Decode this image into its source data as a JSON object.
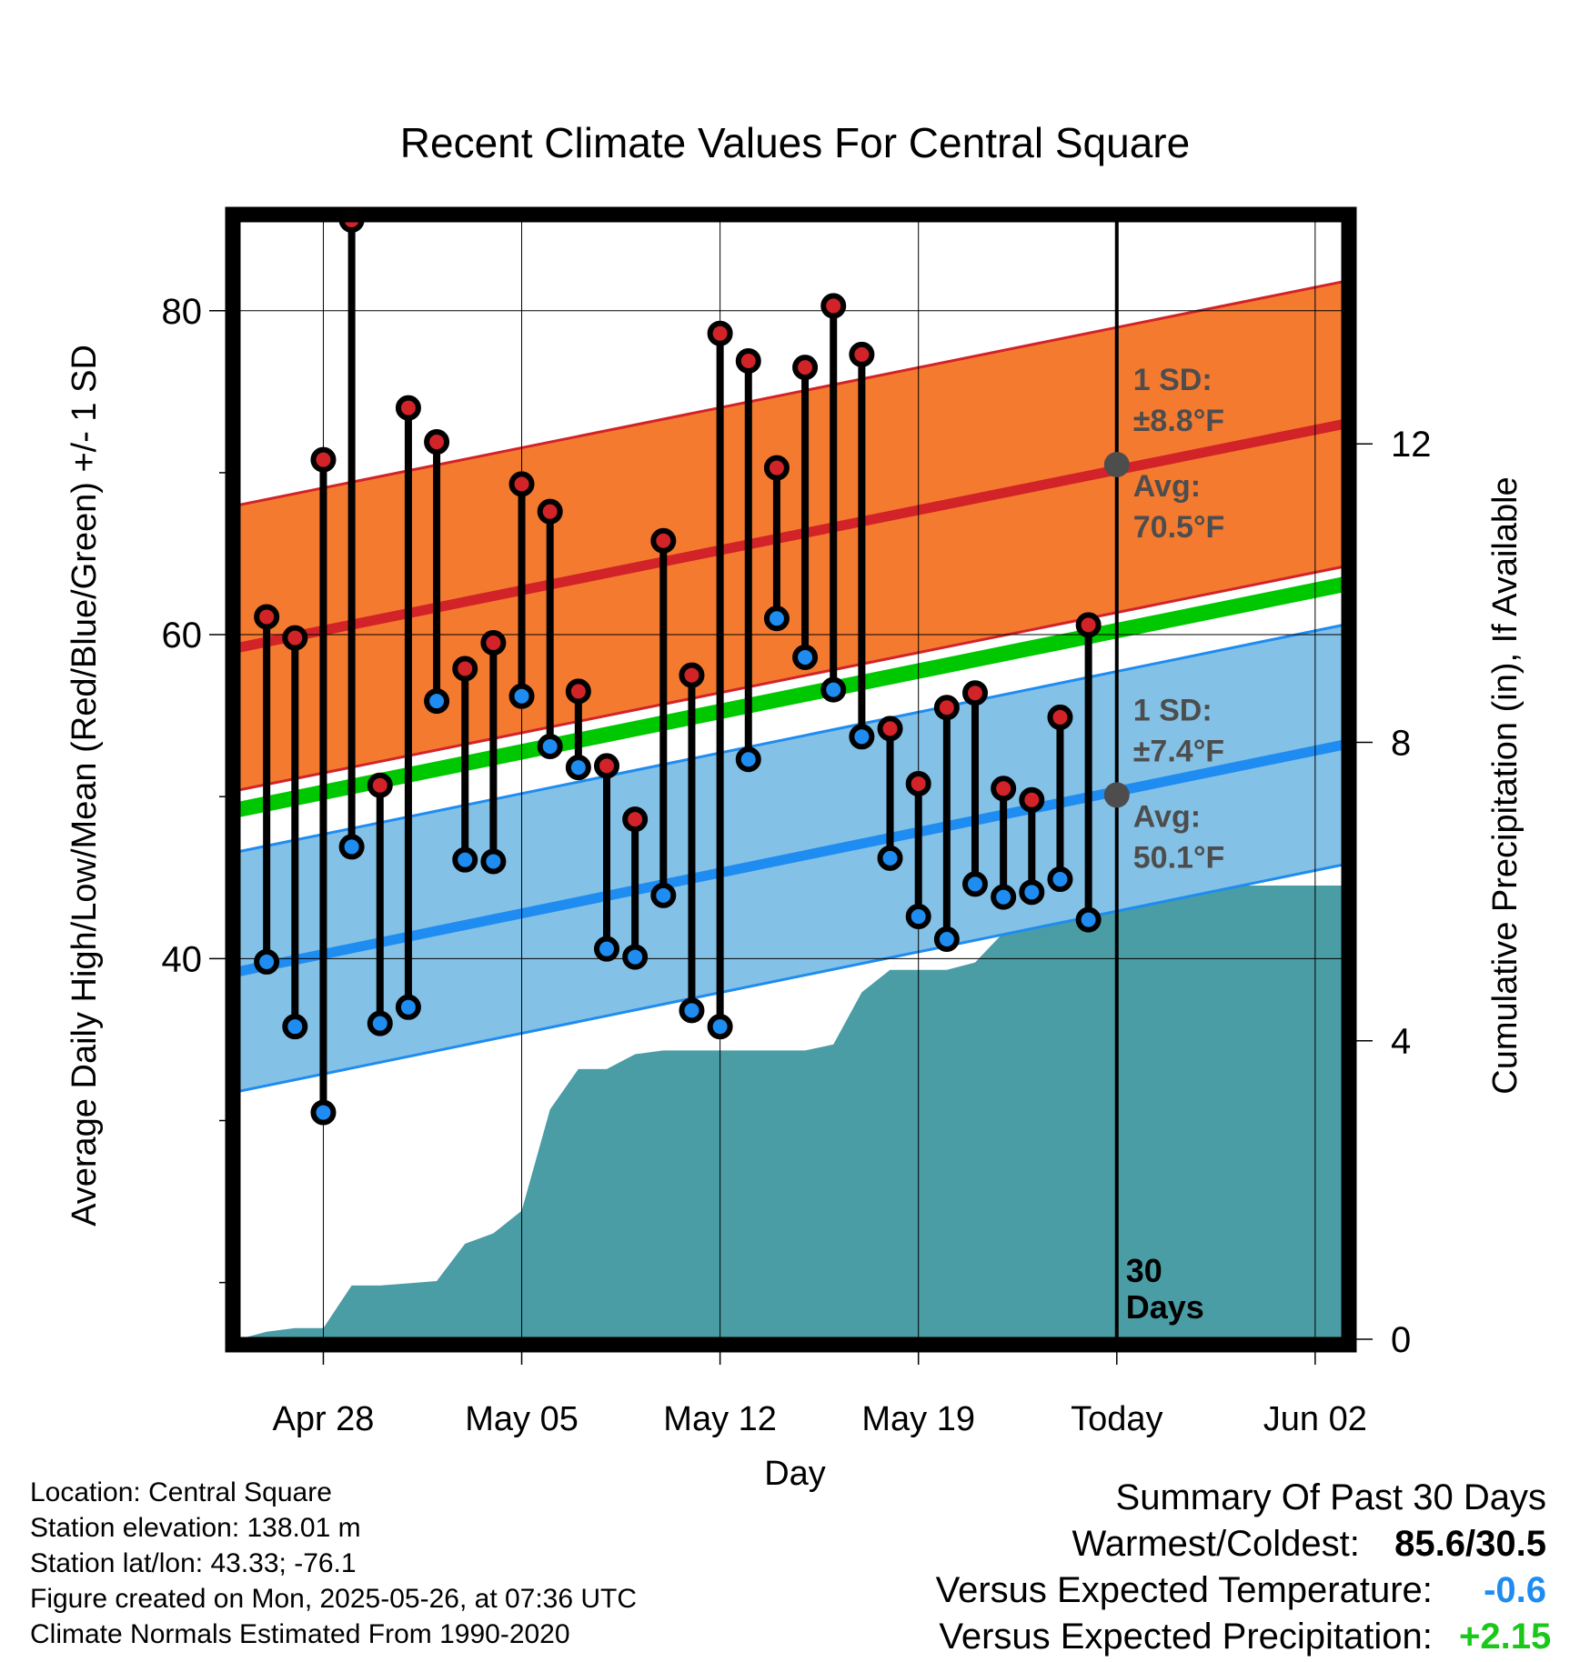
{
  "chart_data": {
    "type": "line",
    "title": "Recent Climate Values For Central Square",
    "xlabel": "Day",
    "ylabel": "Average Daily High/Low/Mean (Red/Blue/Green) +/- 1 SD",
    "y2label": "Cumulative Precipitation (in), If Available",
    "x_tick_labels": [
      "Apr 28",
      "May 05",
      "May 12",
      "May 19",
      "Today",
      "Jun 02"
    ],
    "x_tick_dates": [
      "2025-04-28",
      "2025-05-05",
      "2025-05-12",
      "2025-05-19",
      "2025-05-26",
      "2025-06-02"
    ],
    "xlim": [
      "2025-04-25",
      "2025-06-03"
    ],
    "ylim": [
      16.5,
      85.6
    ],
    "y_ticks": [
      40,
      60,
      80
    ],
    "y2lim": [
      0,
      15
    ],
    "y2_ticks": [
      0,
      4,
      8,
      12
    ],
    "grid": true,
    "today": "2025-05-26",
    "days_label": [
      "30",
      "Days"
    ],
    "dates": [
      "2025-04-26",
      "2025-04-27",
      "2025-04-28",
      "2025-04-29",
      "2025-04-30",
      "2025-05-01",
      "2025-05-02",
      "2025-05-03",
      "2025-05-04",
      "2025-05-05",
      "2025-05-06",
      "2025-05-07",
      "2025-05-08",
      "2025-05-09",
      "2025-05-10",
      "2025-05-11",
      "2025-05-12",
      "2025-05-13",
      "2025-05-14",
      "2025-05-15",
      "2025-05-16",
      "2025-05-17",
      "2025-05-18",
      "2025-05-19",
      "2025-05-20",
      "2025-05-21",
      "2025-05-22",
      "2025-05-23",
      "2025-05-24",
      "2025-05-25"
    ],
    "highs": [
      61.1,
      59.8,
      70.8,
      85.6,
      50.7,
      74.0,
      71.9,
      57.9,
      59.5,
      69.3,
      67.6,
      56.5,
      51.9,
      48.6,
      65.8,
      57.5,
      78.6,
      76.9,
      70.3,
      76.5,
      80.3,
      77.3,
      54.2,
      50.8,
      55.5,
      56.4,
      50.5,
      49.8,
      54.9,
      60.6
    ],
    "lows": [
      39.8,
      35.8,
      30.5,
      46.9,
      36.0,
      37.0,
      55.9,
      46.1,
      46.0,
      56.2,
      53.1,
      51.8,
      40.6,
      40.1,
      43.9,
      36.8,
      35.8,
      52.3,
      61.0,
      58.6,
      56.6,
      53.7,
      46.2,
      42.6,
      41.2,
      44.6,
      43.8,
      44.1,
      44.9,
      42.4
    ],
    "normal_high": {
      "name": "Avg High",
      "start": 59.2,
      "end": 73.0,
      "sd": 8.8,
      "today_value": 70.5
    },
    "normal_low": {
      "name": "Avg Low",
      "start": 39.2,
      "end": 53.2,
      "sd": 7.4,
      "today_value": 50.1
    },
    "normal_mean": {
      "name": "Mean",
      "start": 49.2,
      "end": 63.1
    },
    "high_sd_label": [
      "1 SD:",
      "±8.8°F"
    ],
    "high_avg_label": [
      "Avg:",
      "70.5°F"
    ],
    "low_sd_label": [
      "1 SD:",
      "±7.4°F"
    ],
    "low_avg_label": [
      "Avg:",
      "50.1°F"
    ],
    "precip_cumulative": [
      [
        "2025-04-25",
        0.0
      ],
      [
        "2025-04-26",
        0.1
      ],
      [
        "2025-04-27",
        0.15
      ],
      [
        "2025-04-28",
        0.15
      ],
      [
        "2025-04-29",
        0.72
      ],
      [
        "2025-04-30",
        0.72
      ],
      [
        "2025-05-01",
        0.75
      ],
      [
        "2025-05-02",
        0.78
      ],
      [
        "2025-05-03",
        1.28
      ],
      [
        "2025-05-04",
        1.42
      ],
      [
        "2025-05-05",
        1.72
      ],
      [
        "2025-05-06",
        3.08
      ],
      [
        "2025-05-07",
        3.62
      ],
      [
        "2025-05-08",
        3.62
      ],
      [
        "2025-05-09",
        3.82
      ],
      [
        "2025-05-10",
        3.87
      ],
      [
        "2025-05-11",
        3.87
      ],
      [
        "2025-05-12",
        3.87
      ],
      [
        "2025-05-13",
        3.87
      ],
      [
        "2025-05-14",
        3.87
      ],
      [
        "2025-05-15",
        3.87
      ],
      [
        "2025-05-16",
        3.95
      ],
      [
        "2025-05-17",
        4.65
      ],
      [
        "2025-05-18",
        4.95
      ],
      [
        "2025-05-19",
        4.95
      ],
      [
        "2025-05-20",
        4.95
      ],
      [
        "2025-05-21",
        5.05
      ],
      [
        "2025-05-22",
        5.45
      ],
      [
        "2025-05-23",
        5.92
      ],
      [
        "2025-05-24",
        6.08
      ],
      [
        "2025-05-25",
        6.08
      ],
      [
        "2025-06-03",
        6.08
      ]
    ],
    "colors": {
      "high_band": "#f47a30",
      "high_line": "#d22328",
      "low_band": "#84c1e6",
      "low_line": "#1e8cf0",
      "mean_line": "#00c800",
      "precip": "#4a9ca5",
      "high_dot": "#d22328",
      "low_dot": "#1e8cf0",
      "label_gray": "#4d4d4d"
    }
  },
  "info": {
    "location": "Location: Central Square",
    "elevation": "Station elevation: 138.01 m",
    "latlon": "Station lat/lon: 43.33; -76.1",
    "created": "Figure created on Mon, 2025-05-26, at 07:36 UTC",
    "normals": "Climate Normals Estimated From 1990-2020"
  },
  "summary": {
    "title": "Summary Of Past 30 Days",
    "warmest_label": "Warmest/Coldest:",
    "warmest_value": "85.6/30.5",
    "temp_label": "Versus Expected Temperature:",
    "temp_value": "-0.6",
    "temp_color": "#1e8cf0",
    "precip_label": "Versus Expected Precipitation:",
    "precip_value": "+2.15",
    "precip_color": "#19c819"
  }
}
